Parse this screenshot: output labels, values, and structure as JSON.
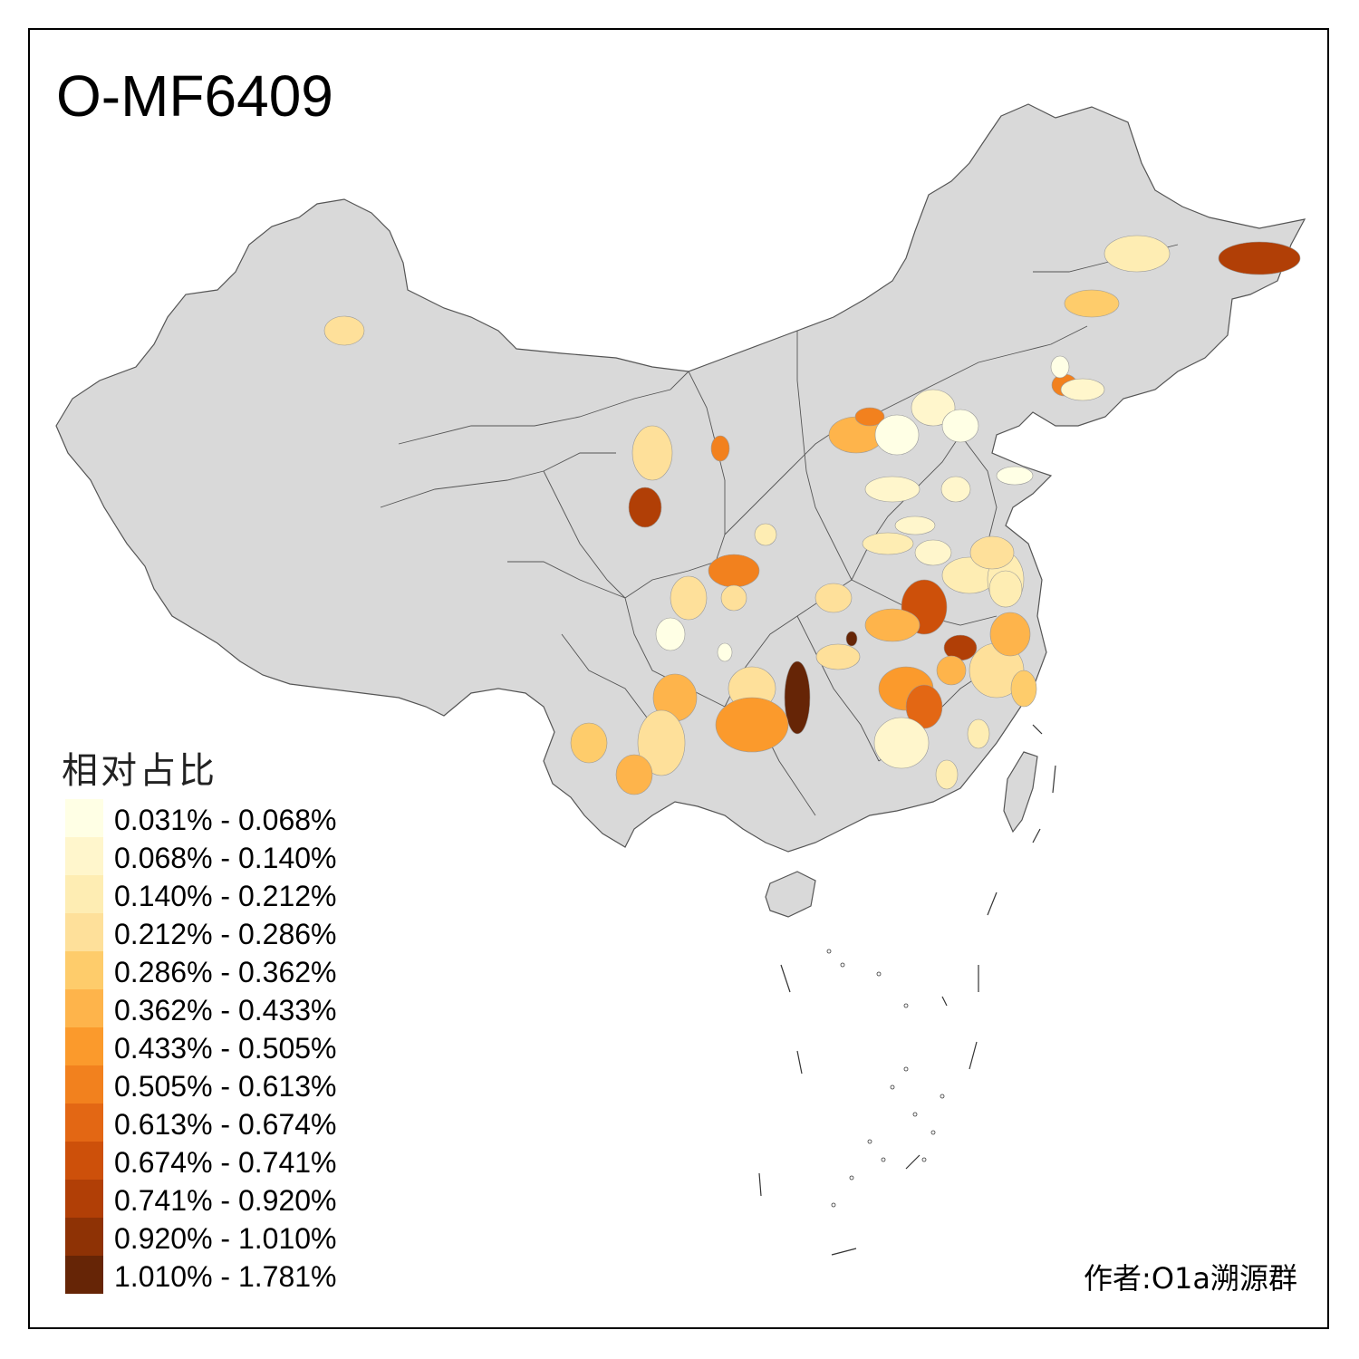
{
  "title": "O-MF6409",
  "legend": {
    "title": "相对占比",
    "items": [
      {
        "label": "0.031% - 0.068%",
        "color": "#FFFFE5"
      },
      {
        "label": "0.068% - 0.140%",
        "color": "#FFF6CC"
      },
      {
        "label": "0.140% - 0.212%",
        "color": "#FEEDB3"
      },
      {
        "label": "0.212% - 0.286%",
        "color": "#FEE09A"
      },
      {
        "label": "0.286% - 0.362%",
        "color": "#FECC6B"
      },
      {
        "label": "0.362% - 0.433%",
        "color": "#FEB44B"
      },
      {
        "label": "0.433% - 0.505%",
        "color": "#FB9A2C"
      },
      {
        "label": "0.505% - 0.613%",
        "color": "#F2811E"
      },
      {
        "label": "0.613% - 0.674%",
        "color": "#E36714"
      },
      {
        "label": "0.674% - 0.741%",
        "color": "#CD500A"
      },
      {
        "label": "0.741% - 0.920%",
        "color": "#B13F06"
      },
      {
        "label": "0.920% - 1.010%",
        "color": "#8E3205"
      },
      {
        "label": "1.010% - 1.781%",
        "color": "#662506"
      }
    ]
  },
  "author": "作者:O1a溯源群",
  "colors": {
    "background": "#FFFFFF",
    "land": "#D9D9D9",
    "boundary": "#555555"
  }
}
